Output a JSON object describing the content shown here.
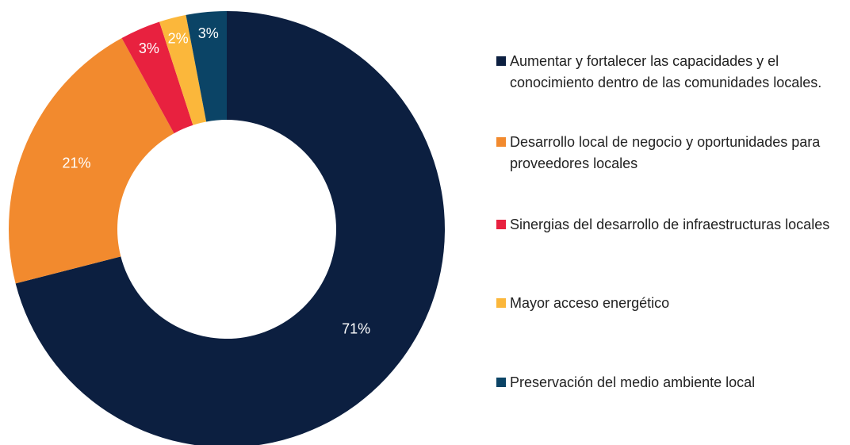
{
  "chart_data": {
    "type": "donut",
    "categories": [
      "Aumentar y fortalecer las capacidades y el conocimiento dentro de las comunidades locales.",
      "Desarrollo local de negocio y oportunidades para proveedores locales",
      "Sinergias del desarrollo de infraestructuras locales",
      "Mayor acceso energético",
      "Preservación del medio ambiente local"
    ],
    "values": [
      71,
      21,
      3,
      2,
      3
    ],
    "value_labels": [
      "71%",
      "21%",
      "3%",
      "2%",
      "3%"
    ],
    "colors": [
      "#0c1f40",
      "#f28a2e",
      "#e8213f",
      "#fbb73b",
      "#0b4466"
    ],
    "legend": "right"
  }
}
